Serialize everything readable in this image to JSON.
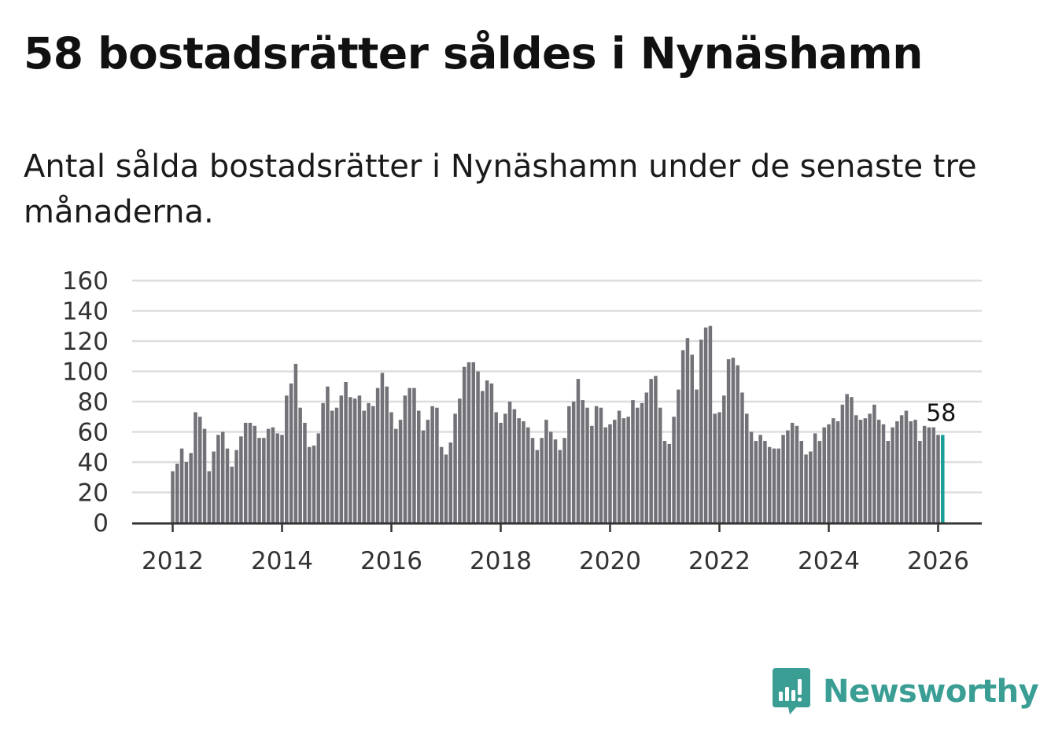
{
  "title": "58 bostadsrätter såldes i Nynäshamn",
  "subtitle": "Antal sålda bostadsrätter i Nynäshamn under de senaste tre månaderna.",
  "brand": {
    "name": "Newsworthy",
    "color": "#3a9e95",
    "icon": "newsworthy-logo-icon"
  },
  "colors": {
    "bar": "#737278",
    "highlight": "#1a9e98",
    "grid": "#dddddd",
    "axis": "#333333"
  },
  "chart_data": {
    "type": "bar",
    "title": "58 bostadsrätter såldes i Nynäshamn",
    "xlabel": "",
    "ylabel": "",
    "ylim": [
      0,
      160
    ],
    "yticks": [
      "0",
      "20",
      "40",
      "60",
      "80",
      "100",
      "120",
      "140",
      "160"
    ],
    "xticks": [
      "2012",
      "2014",
      "2016",
      "2018",
      "2020",
      "2022",
      "2024",
      "2026"
    ],
    "start": "2012-01",
    "highlight_label": "58",
    "values": [
      34,
      39,
      49,
      40,
      46,
      73,
      70,
      62,
      34,
      47,
      58,
      60,
      49,
      37,
      48,
      57,
      66,
      66,
      64,
      56,
      56,
      62,
      63,
      59,
      58,
      84,
      92,
      105,
      76,
      66,
      50,
      51,
      59,
      79,
      90,
      74,
      76,
      84,
      93,
      83,
      82,
      84,
      74,
      79,
      77,
      89,
      99,
      90,
      73,
      62,
      68,
      84,
      89,
      89,
      74,
      61,
      68,
      77,
      76,
      50,
      45,
      53,
      72,
      82,
      103,
      106,
      106,
      100,
      87,
      94,
      92,
      73,
      66,
      72,
      80,
      75,
      69,
      67,
      63,
      56,
      48,
      56,
      68,
      60,
      55,
      48,
      56,
      77,
      80,
      95,
      81,
      76,
      64,
      77,
      76,
      63,
      65,
      68,
      74,
      69,
      70,
      81,
      76,
      79,
      86,
      95,
      97,
      76,
      54,
      52,
      70,
      88,
      114,
      122,
      111,
      88,
      121,
      129,
      130,
      72,
      73,
      84,
      108,
      109,
      104,
      86,
      72,
      60,
      54,
      58,
      54,
      50,
      49,
      49,
      58,
      61,
      66,
      64,
      54,
      45,
      47,
      59,
      54,
      63,
      65,
      69,
      67,
      78,
      85,
      83,
      71,
      68,
      69,
      72,
      78,
      68,
      65,
      54,
      63,
      67,
      71,
      74,
      67,
      68,
      54,
      64,
      63,
      63,
      58,
      58
    ]
  }
}
